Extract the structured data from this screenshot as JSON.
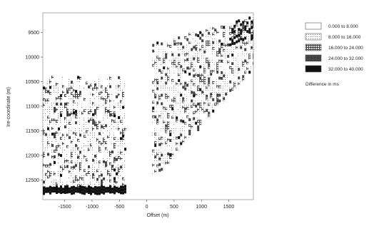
{
  "chart_data": {
    "type": "heatmap",
    "title": "",
    "xlabel": "Offset (m)",
    "ylabel": "Ire-coordinate (m)",
    "xlim": [
      -1900,
      1950
    ],
    "ylim": [
      9100,
      12900
    ],
    "y_inverted": true,
    "grid": false,
    "x_ticks": [
      -1500,
      -1000,
      -500,
      0,
      500,
      1000,
      1500
    ],
    "x_tick_labels": [
      "-1500",
      "-1000",
      "-500",
      "0",
      "500",
      "1000",
      "1500"
    ],
    "y_ticks": [
      9500,
      10000,
      10500,
      11000,
      11500,
      12000,
      12500
    ],
    "y_tick_labels": [
      "9500",
      "10000",
      "10500",
      "11000",
      "11500",
      "12000",
      "12500"
    ],
    "legend": {
      "title": "Difference in ms",
      "placement": "right",
      "entries": [
        {
          "label": "0.000 to 8.000",
          "range": [
            0,
            8
          ],
          "color": "#ffffff",
          "pattern": "blank"
        },
        {
          "label": "8.000 to 16.000",
          "range": [
            8,
            16
          ],
          "color": "#c8c8c8",
          "pattern": "dots"
        },
        {
          "label": "16.000 to 24.000",
          "range": [
            16,
            24
          ],
          "color": "#8c8c8c",
          "pattern": "grid"
        },
        {
          "label": "24.000 to 32.000",
          "range": [
            24,
            32
          ],
          "color": "#4a4a4a",
          "pattern": "dense"
        },
        {
          "label": "32.000 to 40.000",
          "range": [
            32,
            40
          ],
          "color": "#101010",
          "pattern": "solid"
        }
      ]
    },
    "regions": [
      {
        "name": "left-block",
        "x_range": [
          -1900,
          -400
        ],
        "y_top": 10350,
        "y_bottom": 12750,
        "dense_band_y": [
          12600,
          12750
        ]
      },
      {
        "name": "right-block",
        "x_range": [
          100,
          1950
        ],
        "y_top_at_x_min": 9700,
        "y_top_at_x_max": 9150,
        "y_bottom_at_x_min": 12450,
        "y_bottom_at_x_max": 10200
      }
    ]
  }
}
